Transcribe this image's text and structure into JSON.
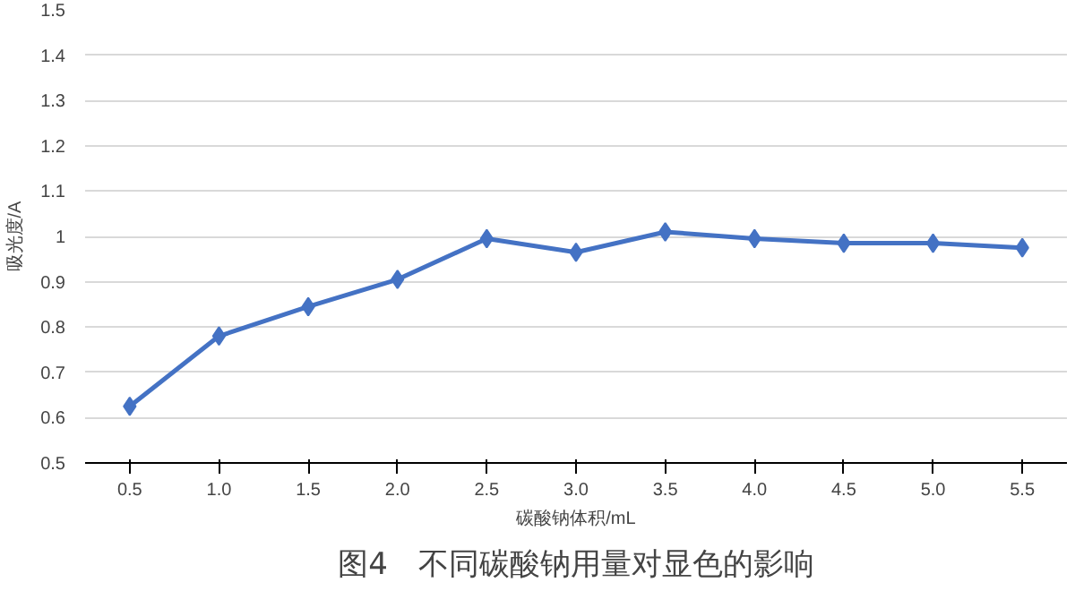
{
  "chart_data": {
    "type": "line",
    "title": "图4　不同碳酸钠用量对显色的影响",
    "xlabel": "碳酸钠体积/mL",
    "ylabel": "吸光度/A",
    "categories": [
      "0.5",
      "1.0",
      "1.5",
      "2.0",
      "2.5",
      "3.0",
      "3.5",
      "4.0",
      "4.5",
      "5.0",
      "5.5"
    ],
    "series": [
      {
        "color": "#4472c4",
        "values": [
          0.625,
          0.78,
          0.845,
          0.905,
          0.995,
          0.965,
          1.01,
          0.995,
          0.985,
          0.985,
          0.975
        ]
      }
    ],
    "ylim": [
      0.5,
      1.5
    ],
    "yticks": [
      0.5,
      0.6,
      0.7,
      0.8,
      0.9,
      1,
      1.1,
      1.2,
      1.3,
      1.4,
      1.5
    ],
    "grid": "y",
    "marker": "diamond",
    "line_style": "solid"
  }
}
